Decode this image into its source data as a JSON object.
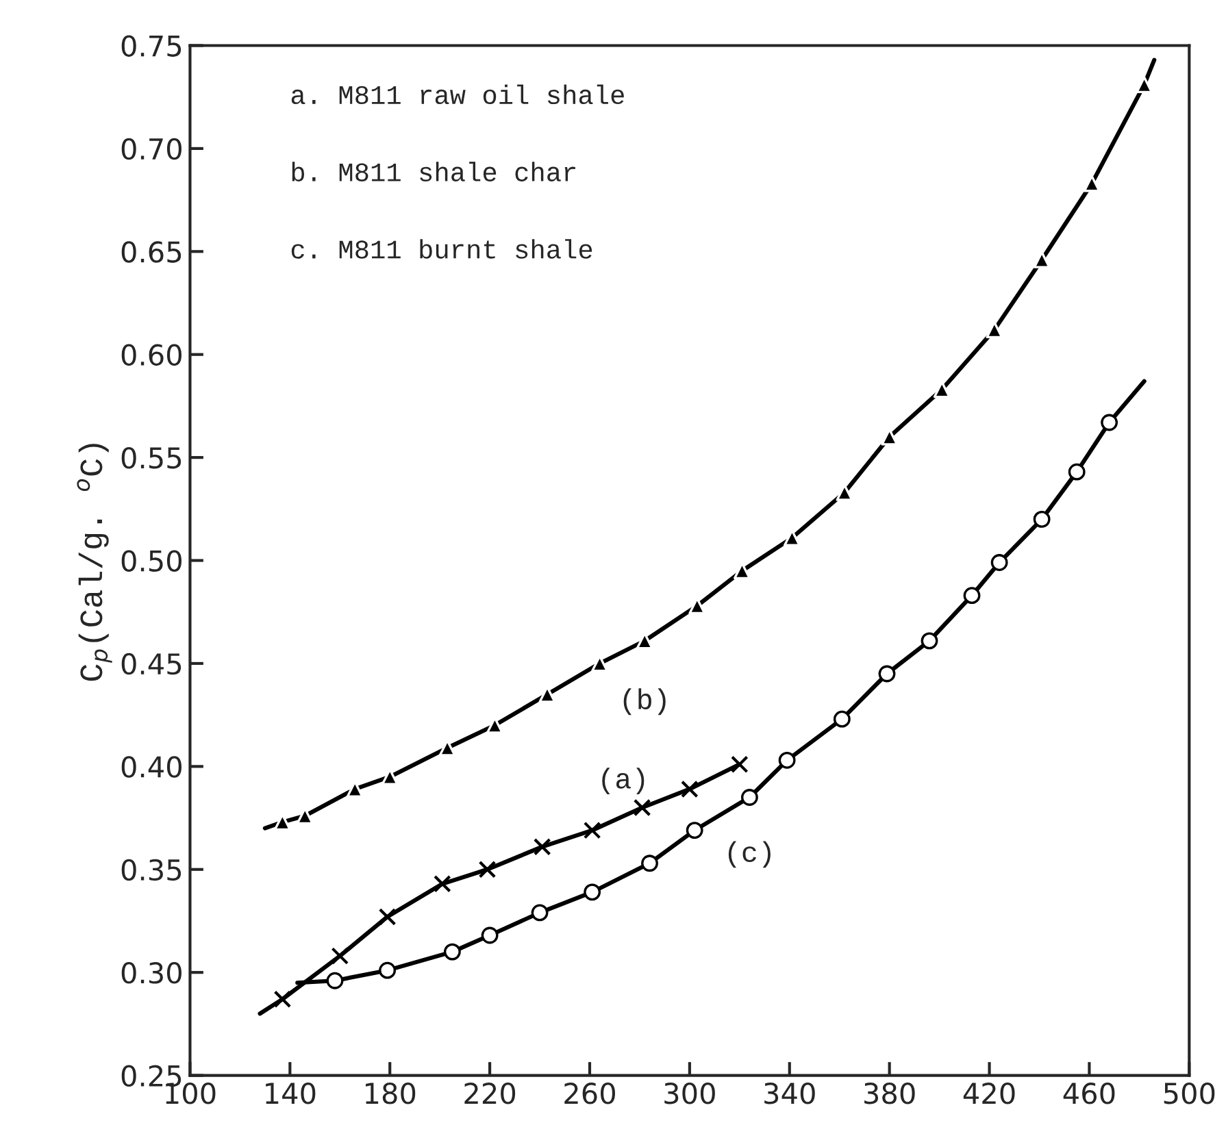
{
  "chart_data": {
    "type": "scatter",
    "ylabel": "C$_{p}$(Cal/g. $^{o}$C)",
    "xlim": [
      100,
      500
    ],
    "xticks": [
      100,
      140,
      180,
      220,
      260,
      300,
      340,
      380,
      420,
      460,
      500
    ],
    "ylim": [
      0.25,
      0.75
    ],
    "yticks": [
      {
        "value": 0.25,
        "label": "0.25"
      },
      {
        "value": 0.3,
        "label": "0.30"
      },
      {
        "value": 0.35,
        "label": "0.35"
      },
      {
        "value": 0.4,
        "label": "0.40"
      },
      {
        "value": 0.45,
        "label": "0.45"
      },
      {
        "value": 0.5,
        "label": "0.50"
      },
      {
        "value": 0.55,
        "label": "0.55"
      },
      {
        "value": 0.6,
        "label": "0.60"
      },
      {
        "value": 0.65,
        "label": "0.65"
      },
      {
        "value": 0.7,
        "label": "0.70"
      },
      {
        "value": 0.75,
        "label": "0.75"
      }
    ],
    "grid": false,
    "legend": false,
    "series": [
      {
        "marker": "cross",
        "color": "#000000",
        "x": [
          137,
          160,
          179,
          201,
          219,
          241,
          261,
          281,
          300,
          320
        ],
        "values": [
          0.287,
          0.308,
          0.327,
          0.343,
          0.35,
          0.361,
          0.369,
          0.38,
          0.389,
          0.401
        ]
      },
      {
        "type": "line",
        "name": "(a)",
        "color": "#000000",
        "x": [
          128,
          137,
          160,
          179,
          201,
          219,
          241,
          261,
          281,
          300,
          320
        ],
        "values": [
          0.28,
          0.287,
          0.308,
          0.327,
          0.343,
          0.35,
          0.361,
          0.369,
          0.38,
          0.389,
          0.401
        ]
      },
      {
        "marker": "triangle",
        "color": "#000000",
        "x": [
          137,
          146,
          166,
          180,
          203,
          222,
          243,
          264,
          282,
          303,
          321,
          341,
          362,
          380,
          401,
          422,
          441,
          461,
          482
        ],
        "values": [
          0.373,
          0.376,
          0.389,
          0.395,
          0.409,
          0.42,
          0.435,
          0.45,
          0.461,
          0.478,
          0.495,
          0.511,
          0.533,
          0.56,
          0.583,
          0.612,
          0.646,
          0.683,
          0.731
        ]
      },
      {
        "type": "line",
        "name": "(b)",
        "color": "#000000",
        "x": [
          130,
          137,
          146,
          166,
          180,
          203,
          222,
          243,
          264,
          282,
          303,
          321,
          341,
          362,
          380,
          401,
          422,
          441,
          461,
          482,
          486
        ],
        "values": [
          0.37,
          0.373,
          0.376,
          0.389,
          0.395,
          0.409,
          0.42,
          0.435,
          0.45,
          0.461,
          0.478,
          0.495,
          0.511,
          0.533,
          0.56,
          0.583,
          0.612,
          0.646,
          0.683,
          0.731,
          0.743
        ]
      },
      {
        "marker": "circle",
        "color": "#000000",
        "x": [
          158,
          179,
          205,
          220,
          240,
          261,
          284,
          302,
          324,
          339,
          361,
          379,
          396,
          413,
          424,
          441,
          455,
          468
        ],
        "values": [
          0.296,
          0.301,
          0.31,
          0.318,
          0.329,
          0.339,
          0.353,
          0.369,
          0.385,
          0.403,
          0.423,
          0.445,
          0.461,
          0.483,
          0.499,
          0.52,
          0.543,
          0.567
        ]
      },
      {
        "type": "line",
        "name": "(c)",
        "color": "#000000",
        "x": [
          143,
          158,
          179,
          205,
          220,
          240,
          261,
          284,
          302,
          324,
          339,
          361,
          379,
          396,
          413,
          424,
          441,
          455,
          468,
          482
        ],
        "values": [
          0.295,
          0.296,
          0.301,
          0.31,
          0.318,
          0.329,
          0.339,
          0.353,
          0.369,
          0.385,
          0.403,
          0.423,
          0.445,
          0.461,
          0.483,
          0.499,
          0.52,
          0.543,
          0.567,
          0.587
        ]
      }
    ],
    "annotations": [
      "a. M811 raw oil shale",
      "b. M811 shale char",
      "c. M811 burnt shale"
    ]
  }
}
